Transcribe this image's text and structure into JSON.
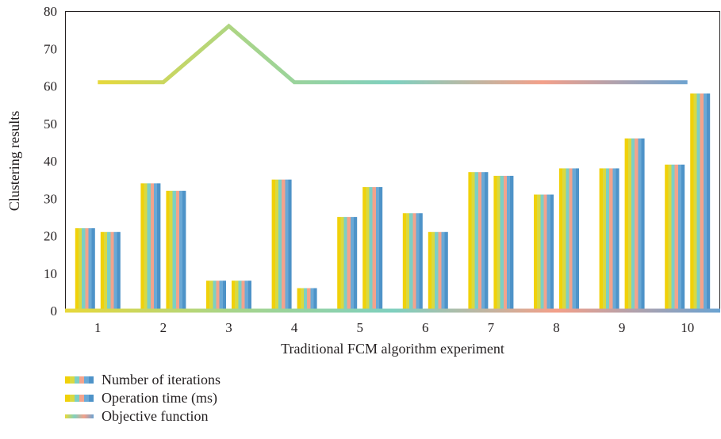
{
  "chart_data": {
    "type": "bar",
    "title": "",
    "xlabel": "Traditional FCM algorithm experiment",
    "ylabel": "Clustering results",
    "categories": [
      "1",
      "2",
      "3",
      "4",
      "5",
      "6",
      "7",
      "8",
      "9",
      "10"
    ],
    "ylim": [
      0,
      80
    ],
    "yticks": [
      0,
      10,
      20,
      30,
      40,
      50,
      60,
      70,
      80
    ],
    "grid": false,
    "legend_position": "bottom-left",
    "series": [
      {
        "name": "Number of iterations",
        "type": "bar",
        "values": [
          22,
          34,
          8,
          35,
          25,
          26,
          37,
          31,
          38,
          39
        ]
      },
      {
        "name": "Operation time (ms)",
        "type": "bar",
        "values": [
          21,
          32,
          8,
          6,
          33,
          21,
          36,
          38,
          46,
          58
        ]
      },
      {
        "name": "Objective function",
        "type": "line",
        "values": [
          61,
          61,
          76,
          61,
          61,
          61,
          61,
          61,
          61,
          61
        ]
      }
    ],
    "colors": {
      "bar_stripes": [
        "#f0d10a",
        "#d9d941",
        "#7dcfc4",
        "#f3a38c",
        "#6aa9d6",
        "#4e93c8"
      ],
      "line_gradient": [
        "#e8d83a",
        "#a8d58a",
        "#7fd0bf",
        "#f3a08a",
        "#6aa3d2"
      ],
      "axis": "#231f20"
    }
  }
}
